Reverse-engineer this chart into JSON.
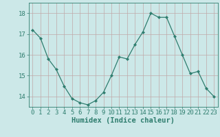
{
  "x": [
    0,
    1,
    2,
    3,
    4,
    5,
    6,
    7,
    8,
    9,
    10,
    11,
    12,
    13,
    14,
    15,
    16,
    17,
    18,
    19,
    20,
    21,
    22,
    23
  ],
  "y": [
    17.2,
    16.8,
    15.8,
    15.3,
    14.5,
    13.9,
    13.7,
    13.6,
    13.8,
    14.2,
    15.0,
    15.9,
    15.8,
    16.5,
    17.1,
    18.0,
    17.8,
    17.8,
    16.9,
    16.0,
    15.1,
    15.2,
    14.4,
    14.0
  ],
  "line_color": "#2e7d6e",
  "marker": "D",
  "marker_size": 2.2,
  "bg_color": "#cce8e8",
  "grid_major_color": "#c0a8a8",
  "grid_minor_color": "#ddd0d0",
  "xlabel": "Humidex (Indice chaleur)",
  "ylim": [
    13.5,
    18.5
  ],
  "yticks": [
    14,
    15,
    16,
    17,
    18
  ],
  "xticks": [
    0,
    1,
    2,
    3,
    4,
    5,
    6,
    7,
    8,
    9,
    10,
    11,
    12,
    13,
    14,
    15,
    16,
    17,
    18,
    19,
    20,
    21,
    22,
    23
  ],
  "tick_color": "#2e7d6e",
  "font_color": "#2e7d6e",
  "font_size": 6.5,
  "label_font_size": 7.5,
  "label_fontweight": "bold"
}
